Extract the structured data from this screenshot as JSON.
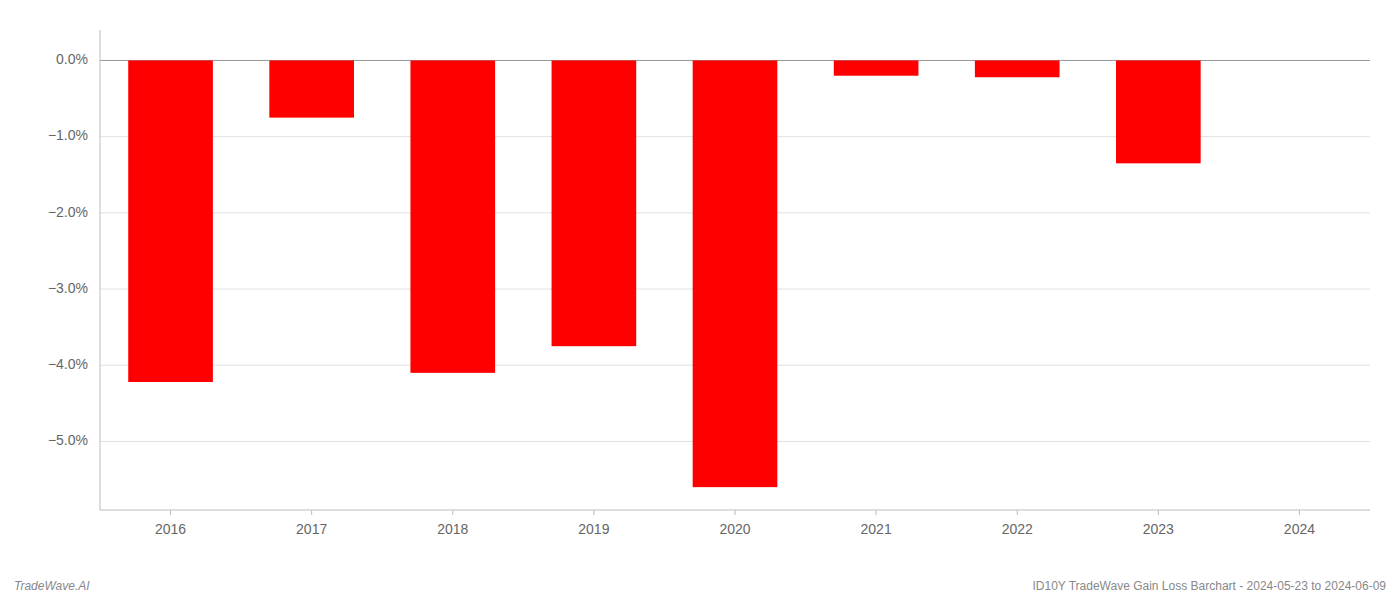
{
  "chart_data": {
    "type": "bar",
    "categories": [
      "2016",
      "2017",
      "2018",
      "2019",
      "2020",
      "2021",
      "2022",
      "2023",
      "2024"
    ],
    "values": [
      -4.22,
      -0.75,
      -4.1,
      -3.75,
      -5.6,
      -0.2,
      -0.22,
      -1.35,
      0.0
    ],
    "color": "#ff0000",
    "ylim": [
      -5.9,
      0.4
    ],
    "yticks": [
      {
        "value": 0.0,
        "label": "0.0%"
      },
      {
        "value": -1.0,
        "label": "−1.0%"
      },
      {
        "value": -2.0,
        "label": "−2.0%"
      },
      {
        "value": -3.0,
        "label": "−3.0%"
      },
      {
        "value": -4.0,
        "label": "−4.0%"
      },
      {
        "value": -5.0,
        "label": "−5.0%"
      }
    ],
    "grid": true,
    "annotations": [
      "TradeWave.AI",
      "ID10Y TradeWave Gain Loss Barchart - 2024-05-23 to 2024-06-09"
    ]
  }
}
